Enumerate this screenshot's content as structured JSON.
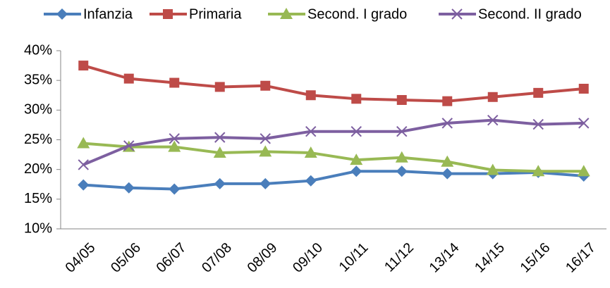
{
  "chart_data": {
    "type": "line",
    "categories": [
      "04/05",
      "05/06",
      "06/07",
      "07/08",
      "08/09",
      "09/10",
      "10/11",
      "11/12",
      "13/14",
      "14/15",
      "15/16",
      "16/17"
    ],
    "series": [
      {
        "name": "Infanzia",
        "color": "#4a7ebb",
        "marker": "diamond",
        "values": [
          17.4,
          16.9,
          16.7,
          17.6,
          17.6,
          18.1,
          19.7,
          19.7,
          19.3,
          19.3,
          19.5,
          18.9
        ]
      },
      {
        "name": "Primaria",
        "color": "#be4b48",
        "marker": "square",
        "values": [
          37.5,
          35.3,
          34.6,
          33.9,
          34.1,
          32.5,
          31.9,
          31.7,
          31.5,
          32.2,
          32.9,
          33.6
        ]
      },
      {
        "name": "Second. I grado",
        "color": "#98b954",
        "marker": "triangle",
        "values": [
          24.4,
          23.8,
          23.8,
          22.8,
          23.0,
          22.8,
          21.6,
          22.0,
          21.3,
          19.9,
          19.7,
          19.7
        ]
      },
      {
        "name": "Second. II grado",
        "color": "#7d5fa0",
        "marker": "cross",
        "values": [
          20.8,
          24.0,
          25.2,
          25.4,
          25.2,
          26.4,
          26.4,
          26.4,
          27.8,
          28.3,
          27.6,
          27.8
        ]
      }
    ],
    "ylim": [
      10,
      40
    ],
    "yticks": [
      {
        "value": 10,
        "label": "10%"
      },
      {
        "value": 15,
        "label": "15%"
      },
      {
        "value": 20,
        "label": "20%"
      },
      {
        "value": 25,
        "label": "25%"
      },
      {
        "value": 30,
        "label": "30%"
      },
      {
        "value": 35,
        "label": "35%"
      },
      {
        "value": 40,
        "label": "40%"
      }
    ],
    "legend": "top",
    "grid": false
  }
}
